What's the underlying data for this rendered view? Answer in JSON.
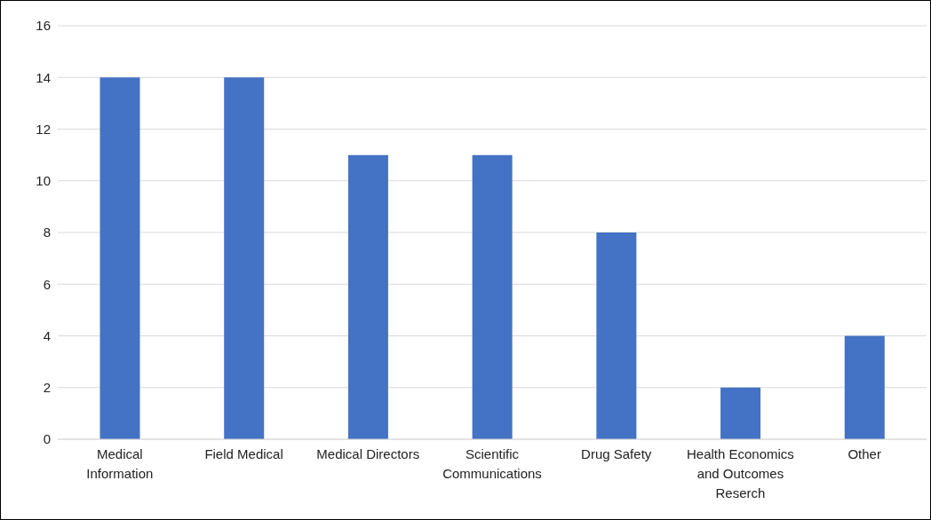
{
  "chart_data": {
    "type": "bar",
    "categories": [
      "Medical Information",
      "Field Medical",
      "Medical Directors",
      "Scientific Communications",
      "Drug Safety",
      "Health Economics and Outcomes Reserch",
      "Other"
    ],
    "values": [
      14,
      14,
      11,
      11,
      8,
      2,
      4
    ],
    "color": "#4472c4",
    "ylim": [
      0,
      16
    ],
    "yticks": [
      0,
      2,
      4,
      6,
      8,
      10,
      12,
      14,
      16
    ],
    "grid": "y",
    "legend": false
  }
}
